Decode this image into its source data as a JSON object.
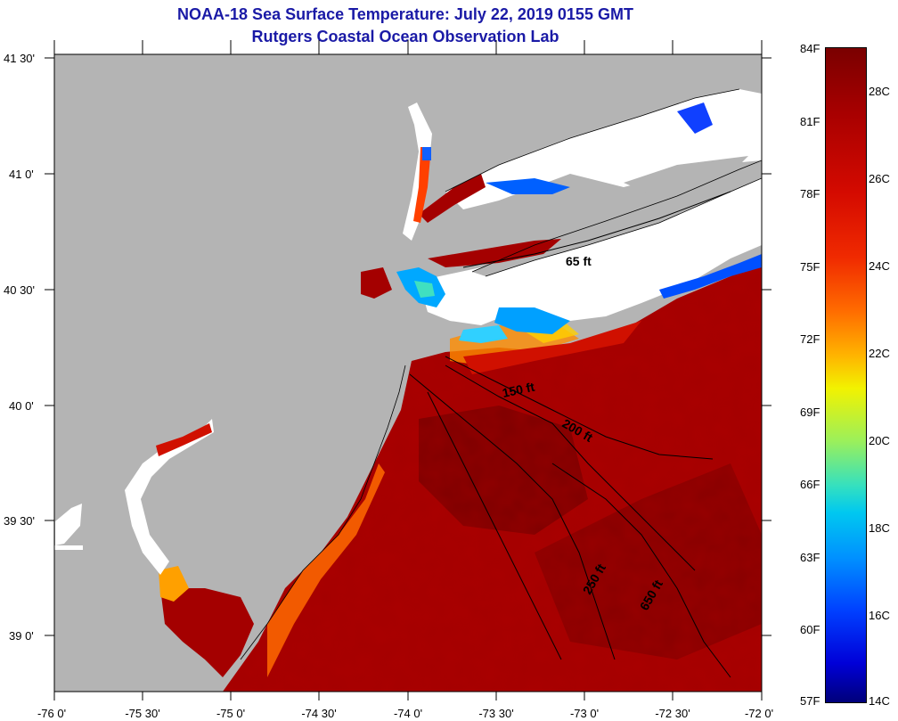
{
  "title": {
    "line1": "NOAA-18 Sea Surface Temperature:  July 22, 2019 0155 GMT",
    "line2": "Rutgers Coastal Ocean Observation Lab"
  },
  "latitude_ticks": [
    "41 30'",
    "41 0'",
    "40 30'",
    "40 0'",
    "39 30'",
    "39 0'"
  ],
  "longitude_ticks": [
    "-76 0'",
    "-75 30'",
    "-75 0'",
    "-74 30'",
    "-74 0'",
    "-73 30'",
    "-73 0'",
    "-72 30'",
    "-72 0'"
  ],
  "depth_contours": [
    "65 ft",
    "150 ft",
    "200 ft",
    "250 ft",
    "650 ft"
  ],
  "colorbar": {
    "fahrenheit": [
      "84F",
      "81F",
      "78F",
      "75F",
      "72F",
      "69F",
      "66F",
      "63F",
      "60F",
      "57F"
    ],
    "celsius": [
      "28C",
      "26C",
      "24C",
      "22C",
      "20C",
      "18C",
      "16C",
      "14C"
    ]
  },
  "colors": {
    "title": "#1a1aa6",
    "land": "#b4b4b4",
    "cloud": "#ffffff",
    "sst_max": "#7a0000",
    "sst_min": "#00007a"
  }
}
